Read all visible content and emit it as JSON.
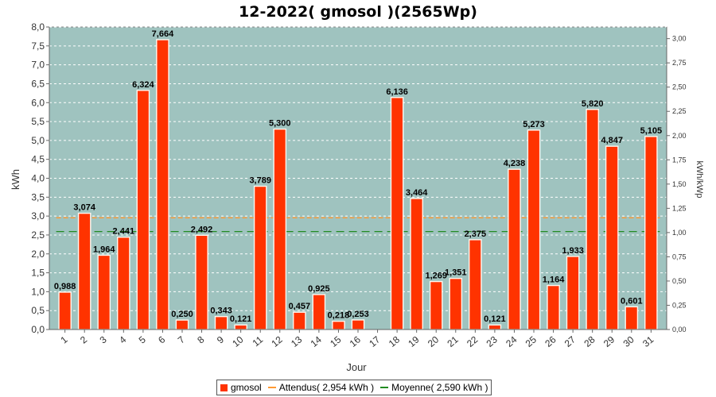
{
  "chart_data": {
    "type": "bar",
    "title": "12-2022( gmosol )(2565Wp)",
    "xlabel": "Jour",
    "ylabel": "kWh",
    "y2label": "kWh/kWp",
    "ylim": [
      0,
      8
    ],
    "y2lim": [
      0,
      3.12
    ],
    "y_ticks": [
      "0,0",
      "0,5",
      "1,0",
      "1,5",
      "2,0",
      "2,5",
      "3,0",
      "3,5",
      "4,0",
      "4,5",
      "5,0",
      "5,5",
      "6,0",
      "6,5",
      "7,0",
      "7,5",
      "8,0"
    ],
    "y2_ticks": [
      "0,00",
      "0,25",
      "0,50",
      "0,75",
      "1,00",
      "1,25",
      "1,50",
      "1,75",
      "2,00",
      "2,25",
      "2,50",
      "2,75",
      "3,00"
    ],
    "categories": [
      "1",
      "2",
      "3",
      "4",
      "5",
      "6",
      "7",
      "8",
      "9",
      "10",
      "11",
      "12",
      "13",
      "14",
      "15",
      "16",
      "17",
      "18",
      "19",
      "20",
      "21",
      "22",
      "23",
      "24",
      "25",
      "26",
      "27",
      "28",
      "29",
      "30",
      "31"
    ],
    "series": [
      {
        "name": "gmosol",
        "values": [
          0.988,
          3.074,
          1.964,
          2.441,
          6.324,
          7.664,
          0.25,
          2.492,
          0.343,
          0.121,
          3.789,
          5.3,
          0.457,
          0.925,
          0.218,
          0.253,
          0,
          6.136,
          3.464,
          1.269,
          1.351,
          2.375,
          0.121,
          4.238,
          5.273,
          1.164,
          1.933,
          5.82,
          4.847,
          0.601,
          5.105
        ],
        "labels": [
          "0,988",
          "3,074",
          "1,964",
          "2,441",
          "6,324",
          "7,664",
          "0,250",
          "2,492",
          "0,343",
          "0,121",
          "3,789",
          "5,300",
          "0,457",
          "0,925",
          "0,218",
          "0,253",
          "",
          "6,136",
          "3,464",
          "1,269",
          "1,351",
          "2,375",
          "0,121",
          "4,238",
          "5,273",
          "1,164",
          "1,933",
          "5,820",
          "4,847",
          "0,601",
          "5,105"
        ]
      }
    ],
    "reference_lines": [
      {
        "name": "Attendus( 2,954 kWh )",
        "value": 2.954,
        "color": "#ff9933",
        "style": "dashed"
      },
      {
        "name": "Moyenne( 2,590 kWh )",
        "value": 2.59,
        "color": "#228b22",
        "style": "dashed"
      }
    ],
    "legend": {
      "placement": "bottom",
      "items": [
        {
          "label": "gmosol",
          "kind": "box",
          "color": "#ff3300"
        },
        {
          "label": "Attendus( 2,954 kWh )",
          "kind": "line",
          "color": "#ff9933"
        },
        {
          "label": "Moyenne( 2,590 kWh )",
          "kind": "line",
          "color": "#228b22"
        }
      ]
    },
    "colors": {
      "plot_bg": "#9fc3bf",
      "bar": "#ff3300",
      "grid": "#ffffff"
    },
    "grid": true
  }
}
